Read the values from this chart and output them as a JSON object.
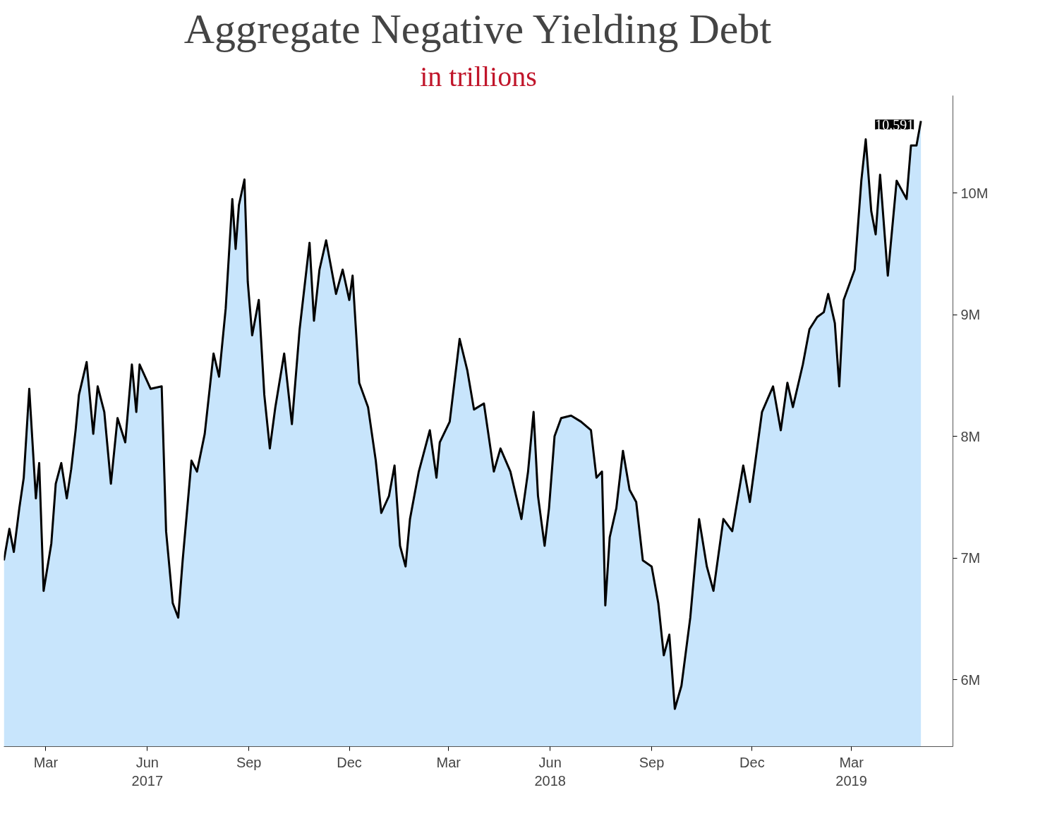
{
  "chart_data": {
    "type": "area",
    "title": "Aggregate Negative Yielding Debt",
    "subtitle": "in trillions",
    "x": [
      "2017-02-05",
      "2017-02-10",
      "2017-02-14",
      "2017-02-19",
      "2017-02-23",
      "2017-02-28",
      "2017-03-06",
      "2017-03-09",
      "2017-03-13",
      "2017-03-20",
      "2017-03-24",
      "2017-03-29",
      "2017-04-03",
      "2017-04-07",
      "2017-04-11",
      "2017-04-14",
      "2017-04-21",
      "2017-04-27",
      "2017-05-01",
      "2017-05-07",
      "2017-05-13",
      "2017-05-19",
      "2017-05-26",
      "2017-06-01",
      "2017-06-05",
      "2017-06-08",
      "2017-06-18",
      "2017-06-28",
      "2017-07-02",
      "2017-07-08",
      "2017-07-13",
      "2017-07-17",
      "2017-07-25",
      "2017-07-30",
      "2017-08-06",
      "2017-08-14",
      "2017-08-19",
      "2017-08-25",
      "2017-08-31",
      "2017-09-03",
      "2017-09-06",
      "2017-09-11",
      "2017-09-14",
      "2017-09-18",
      "2017-09-24",
      "2017-09-29",
      "2017-10-04",
      "2017-10-09",
      "2017-10-17",
      "2017-10-24",
      "2017-10-31",
      "2017-11-09",
      "2017-11-13",
      "2017-11-18",
      "2017-11-24",
      "2017-12-03",
      "2017-12-09",
      "2017-12-15",
      "2017-12-18",
      "2017-12-24",
      "2018-01-01",
      "2018-01-08",
      "2018-01-13",
      "2018-01-20",
      "2018-01-25",
      "2018-01-30",
      "2018-02-04",
      "2018-02-08",
      "2018-02-16",
      "2018-02-26",
      "2018-03-04",
      "2018-03-07",
      "2018-03-16",
      "2018-03-25",
      "2018-04-01",
      "2018-04-07",
      "2018-04-16",
      "2018-04-25",
      "2018-05-01",
      "2018-05-10",
      "2018-05-20",
      "2018-05-26",
      "2018-05-31",
      "2018-06-04",
      "2018-06-10",
      "2018-06-14",
      "2018-06-19",
      "2018-06-25",
      "2018-07-04",
      "2018-07-13",
      "2018-07-22",
      "2018-07-27",
      "2018-08-01",
      "2018-08-04",
      "2018-08-08",
      "2018-08-14",
      "2018-08-20",
      "2018-08-26",
      "2018-09-01",
      "2018-09-07",
      "2018-09-15",
      "2018-09-21",
      "2018-09-26",
      "2018-10-01",
      "2018-10-06",
      "2018-10-12",
      "2018-10-20",
      "2018-10-28",
      "2018-11-04",
      "2018-11-10",
      "2018-11-19",
      "2018-11-27",
      "2018-12-07",
      "2018-12-13",
      "2018-12-24",
      "2019-01-03",
      "2019-01-10",
      "2019-01-16",
      "2019-01-21",
      "2019-01-30",
      "2019-02-05",
      "2019-02-12",
      "2019-02-18",
      "2019-02-22",
      "2019-02-28",
      "2019-03-04",
      "2019-03-08",
      "2019-03-18",
      "2019-03-24",
      "2019-03-28",
      "2019-04-02",
      "2019-04-06",
      "2019-04-10",
      "2019-04-17",
      "2019-04-25",
      "2019-05-04",
      "2019-05-08",
      "2019-05-13",
      "2019-05-17"
    ],
    "series": [
      {
        "color": "#c8e5fc",
        "values": [
          6.98,
          7.24,
          7.05,
          7.41,
          7.66,
          8.39,
          7.49,
          7.78,
          6.73,
          7.12,
          7.61,
          7.78,
          7.49,
          7.73,
          8.05,
          8.34,
          8.61,
          8.02,
          8.41,
          8.2,
          7.61,
          8.15,
          7.95,
          8.59,
          8.2,
          8.59,
          8.39,
          8.41,
          7.22,
          6.63,
          6.51,
          6.98,
          7.8,
          7.71,
          8.02,
          8.68,
          8.49,
          9.05,
          9.95,
          9.54,
          9.9,
          10.11,
          9.27,
          8.83,
          9.12,
          8.34,
          7.9,
          8.24,
          8.68,
          8.1,
          8.88,
          9.59,
          8.95,
          9.37,
          9.61,
          9.17,
          9.37,
          9.12,
          9.32,
          8.44,
          8.24,
          7.8,
          7.37,
          7.51,
          7.76,
          7.1,
          6.93,
          7.32,
          7.71,
          8.05,
          7.66,
          7.95,
          8.12,
          8.8,
          8.54,
          8.22,
          8.27,
          7.71,
          7.9,
          7.71,
          7.32,
          7.71,
          8.2,
          7.51,
          7.1,
          7.41,
          8.0,
          8.15,
          8.17,
          8.12,
          8.05,
          7.66,
          7.71,
          6.61,
          7.17,
          7.41,
          7.88,
          7.56,
          7.46,
          6.98,
          6.93,
          6.63,
          6.2,
          6.37,
          5.76,
          5.95,
          6.51,
          7.32,
          6.93,
          6.73,
          7.32,
          7.22,
          7.76,
          7.46,
          8.2,
          8.41,
          8.05,
          8.44,
          8.24,
          8.59,
          8.88,
          8.98,
          9.02,
          9.17,
          8.93,
          8.41,
          9.12,
          9.37,
          10.1,
          10.44,
          9.85,
          9.66,
          10.15,
          9.32,
          10.1,
          9.95,
          10.39,
          10.39,
          10.591
        ]
      }
    ],
    "annotations": [
      {
        "text": "10.591",
        "x": "2019-05-17",
        "y": 10.591
      }
    ],
    "xlim": [
      "2017-02-05",
      "2019-06-15"
    ],
    "xticks": [
      {
        "value": "2017-03-15",
        "label": "Mar"
      },
      {
        "value": "2017-06-15",
        "label": "Jun\n2017"
      },
      {
        "value": "2017-09-15",
        "label": "Sep"
      },
      {
        "value": "2017-12-15",
        "label": "Dec"
      },
      {
        "value": "2018-03-15",
        "label": "Mar"
      },
      {
        "value": "2018-06-15",
        "label": "Jun\n2018"
      },
      {
        "value": "2018-09-15",
        "label": "Sep"
      },
      {
        "value": "2018-12-15",
        "label": "Dec"
      },
      {
        "value": "2019-03-15",
        "label": "Mar\n2019"
      }
    ],
    "ylim": [
      5.45,
      10.8
    ],
    "yticks": [
      {
        "value": 6,
        "label": "6M"
      },
      {
        "value": 7,
        "label": "7M"
      },
      {
        "value": 8,
        "label": "8M"
      },
      {
        "value": 9,
        "label": "9M"
      },
      {
        "value": 10,
        "label": "10M"
      }
    ],
    "grid": false
  }
}
